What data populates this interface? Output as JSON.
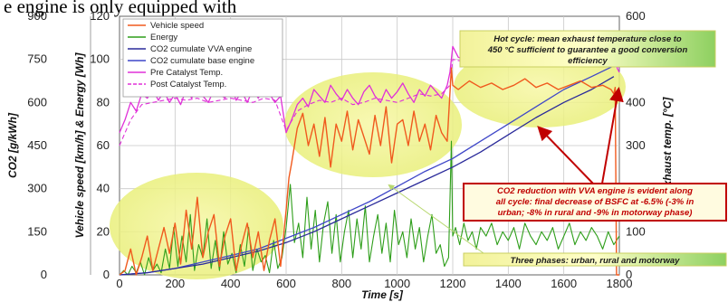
{
  "caption": "e engine is only equipped with",
  "chart_data": {
    "type": "line",
    "xlabel": "Time [s]",
    "xlim": [
      0,
      1800
    ],
    "x_ticks": [
      0,
      200,
      400,
      600,
      800,
      1000,
      1200,
      1400,
      1600,
      1800
    ],
    "y_axes": {
      "co2": {
        "label": "CO2 [g/kWh]",
        "lim": [
          0,
          900
        ],
        "ticks": [
          0,
          150,
          300,
          450,
          600,
          750,
          900
        ]
      },
      "speed_energy": {
        "label": "Vehicle speed [km/h] & Energy [Wh]",
        "lim": [
          0,
          120
        ],
        "ticks": [
          0,
          20,
          40,
          60,
          80,
          100,
          120
        ]
      },
      "temp": {
        "label": "Exhaust temp. [°C]",
        "lim": [
          0,
          600
        ],
        "ticks": [
          0,
          100,
          200,
          300,
          400,
          500,
          600
        ]
      }
    },
    "legend": {
      "placement": "top-left",
      "entries": [
        {
          "name": "Vehicle speed",
          "color": "#f05a1e"
        },
        {
          "name": "Energy",
          "color": "#2e9e1a"
        },
        {
          "name": "CO2 cumulate VVA engine",
          "color": "#2a2a9a"
        },
        {
          "name": "CO2 cumulate base engine",
          "color": "#3f47c8"
        },
        {
          "name": "Pre Catalyst Temp.",
          "color": "#e030d8"
        },
        {
          "name": "Post Catalyst Temp.",
          "color": "#e030d8"
        }
      ]
    },
    "series": [
      {
        "name": "Vehicle speed",
        "axis": "speed_energy",
        "color": "#f05a1e",
        "width": 1.4,
        "x": [
          0,
          20,
          40,
          60,
          80,
          100,
          120,
          140,
          160,
          180,
          200,
          220,
          240,
          260,
          280,
          300,
          320,
          340,
          360,
          380,
          400,
          420,
          440,
          460,
          480,
          500,
          520,
          540,
          560,
          580,
          600,
          610,
          620,
          640,
          660,
          680,
          700,
          720,
          740,
          760,
          780,
          800,
          820,
          840,
          860,
          880,
          900,
          920,
          940,
          960,
          980,
          1000,
          1020,
          1040,
          1060,
          1080,
          1100,
          1120,
          1140,
          1160,
          1180,
          1195,
          1200,
          1220,
          1260,
          1300,
          1340,
          1380,
          1420,
          1460,
          1500,
          1540,
          1580,
          1620,
          1660,
          1700,
          1740,
          1770,
          1780,
          1785,
          1790,
          1800
        ],
        "y": [
          0,
          2,
          12,
          0,
          8,
          18,
          2,
          12,
          22,
          10,
          24,
          5,
          30,
          12,
          36,
          8,
          20,
          28,
          4,
          18,
          26,
          2,
          14,
          24,
          8,
          20,
          2,
          16,
          26,
          4,
          30,
          45,
          52,
          68,
          75,
          60,
          70,
          55,
          73,
          50,
          70,
          62,
          76,
          58,
          72,
          64,
          56,
          74,
          60,
          78,
          52,
          70,
          72,
          60,
          76,
          62,
          70,
          58,
          74,
          66,
          62,
          96,
          88,
          86,
          90,
          87,
          89,
          86,
          88,
          91,
          87,
          89,
          86,
          88,
          90,
          87,
          88,
          86,
          84,
          87,
          0,
          0
        ]
      },
      {
        "name": "Energy",
        "axis": "speed_energy",
        "color": "#2e9e1a",
        "width": 1.1,
        "x": [
          0,
          15,
          30,
          45,
          60,
          75,
          90,
          105,
          120,
          135,
          150,
          165,
          180,
          195,
          210,
          225,
          240,
          255,
          270,
          285,
          300,
          315,
          330,
          345,
          360,
          375,
          390,
          405,
          420,
          435,
          450,
          465,
          480,
          495,
          510,
          525,
          540,
          555,
          570,
          585,
          600,
          615,
          630,
          645,
          660,
          675,
          690,
          705,
          720,
          735,
          750,
          765,
          780,
          795,
          810,
          825,
          840,
          855,
          870,
          885,
          900,
          915,
          930,
          945,
          960,
          975,
          990,
          1005,
          1020,
          1035,
          1050,
          1065,
          1080,
          1095,
          1110,
          1125,
          1140,
          1155,
          1170,
          1185,
          1195,
          1200,
          1210,
          1225,
          1240,
          1255,
          1270,
          1285,
          1300,
          1320,
          1340,
          1360,
          1380,
          1400,
          1420,
          1440,
          1460,
          1480,
          1500,
          1520,
          1540,
          1560,
          1580,
          1600,
          1620,
          1640,
          1660,
          1680,
          1700,
          1720,
          1740,
          1760,
          1780,
          1800
        ],
        "y": [
          0,
          2,
          0,
          4,
          1,
          6,
          0,
          8,
          2,
          5,
          1,
          12,
          3,
          22,
          4,
          18,
          6,
          28,
          2,
          14,
          8,
          26,
          3,
          16,
          2,
          20,
          5,
          10,
          1,
          14,
          4,
          22,
          2,
          12,
          6,
          9,
          1,
          16,
          3,
          8,
          22,
          42,
          15,
          24,
          8,
          36,
          12,
          30,
          6,
          24,
          34,
          10,
          28,
          6,
          20,
          30,
          8,
          26,
          12,
          32,
          6,
          18,
          28,
          10,
          24,
          6,
          30,
          14,
          20,
          8,
          26,
          12,
          22,
          6,
          18,
          28,
          10,
          14,
          4,
          8,
          62,
          18,
          22,
          14,
          24,
          16,
          20,
          12,
          22,
          18,
          24,
          14,
          20,
          16,
          22,
          12,
          24,
          18,
          14,
          20,
          16,
          22,
          12,
          18,
          24,
          14,
          20,
          16,
          22,
          18,
          12,
          20,
          14,
          18
        ]
      },
      {
        "name": "CO2 cumulate VVA engine",
        "axis": "speed_energy",
        "color": "#2a2a9a",
        "width": 1.3,
        "x": [
          0,
          100,
          200,
          300,
          400,
          500,
          600,
          700,
          800,
          900,
          1000,
          1100,
          1200,
          1300,
          1400,
          1500,
          1600,
          1700,
          1780
        ],
        "y": [
          0,
          1,
          3,
          5,
          8,
          11,
          15,
          20,
          26,
          32,
          38,
          44,
          50,
          57,
          65,
          73,
          80,
          86,
          92
        ]
      },
      {
        "name": "CO2 cumulate base engine",
        "axis": "speed_energy",
        "color": "#3f47c8",
        "width": 1.3,
        "x": [
          0,
          100,
          200,
          300,
          400,
          500,
          600,
          700,
          800,
          900,
          1000,
          1100,
          1200,
          1300,
          1400,
          1500,
          1600,
          1700,
          1780
        ],
        "y": [
          0,
          1,
          3,
          6,
          9,
          12,
          17,
          22,
          28,
          34,
          41,
          48,
          54,
          62,
          70,
          78,
          86,
          92,
          97
        ]
      },
      {
        "name": "Pre Catalyst Temp.",
        "axis": "temp",
        "color": "#e030d8",
        "width": 1.3,
        "x": [
          0,
          20,
          40,
          60,
          80,
          100,
          120,
          140,
          160,
          180,
          200,
          220,
          240,
          260,
          280,
          300,
          320,
          340,
          360,
          380,
          400,
          420,
          440,
          460,
          480,
          500,
          520,
          540,
          560,
          580,
          600,
          620,
          640,
          660,
          680,
          700,
          720,
          740,
          760,
          780,
          800,
          820,
          840,
          860,
          880,
          900,
          920,
          940,
          960,
          980,
          1000,
          1020,
          1040,
          1060,
          1080,
          1100,
          1120,
          1140,
          1160,
          1180,
          1190,
          1200,
          1220,
          1240,
          1260,
          1280,
          1300,
          1340,
          1380,
          1420,
          1460,
          1500,
          1540,
          1580,
          1620,
          1660,
          1700,
          1740,
          1780,
          1800
        ],
        "y": [
          330,
          360,
          400,
          380,
          420,
          410,
          430,
          405,
          425,
          400,
          420,
          395,
          430,
          410,
          440,
          415,
          400,
          430,
          420,
          410,
          440,
          405,
          425,
          400,
          430,
          410,
          435,
          420,
          400,
          415,
          330,
          360,
          395,
          410,
          390,
          430,
          415,
          400,
          440,
          420,
          405,
          430,
          410,
          395,
          425,
          440,
          415,
          400,
          430,
          410,
          425,
          445,
          420,
          400,
          430,
          415,
          440,
          425,
          410,
          440,
          470,
          530,
          505,
          500,
          490,
          500,
          505,
          495,
          500,
          490,
          495,
          505,
          490,
          500,
          495,
          505,
          490,
          500,
          495,
          470
        ]
      },
      {
        "name": "Post Catalyst Temp.",
        "axis": "temp",
        "color": "#e030d8",
        "width": 1.1,
        "dash": "5,3",
        "x": [
          0,
          40,
          80,
          120,
          160,
          200,
          240,
          280,
          320,
          360,
          400,
          440,
          480,
          520,
          560,
          600,
          640,
          680,
          720,
          760,
          800,
          840,
          880,
          920,
          960,
          1000,
          1040,
          1080,
          1120,
          1160,
          1190,
          1200,
          1240,
          1280,
          1320,
          1360,
          1400,
          1440,
          1480,
          1520,
          1560,
          1600,
          1640,
          1680,
          1720,
          1760,
          1800
        ],
        "y": [
          300,
          360,
          395,
          400,
          405,
          410,
          405,
          410,
          400,
          405,
          410,
          405,
          400,
          410,
          405,
          335,
          380,
          395,
          405,
          400,
          410,
          395,
          400,
          410,
          405,
          400,
          410,
          420,
          415,
          420,
          440,
          500,
          495,
          490,
          500,
          495,
          505,
          500,
          495,
          500,
          505,
          495,
          500,
          505,
          495,
          500,
          480
        ]
      }
    ],
    "annotations": [
      {
        "text": [
          "Hot cycle: mean exhaust temperature close to",
          "450 °C sufficient to guarantee a good conversion",
          "efficiency"
        ],
        "color": "#1a1a1a"
      },
      {
        "text": [
          "CO2 reduction with VVA engine is evident along",
          "all cycle: final decrease of BSFC at -6.5% (-3% in",
          "urban; -8% in rural and -9% in motorway phase)"
        ],
        "color": "#c00000"
      },
      {
        "text": [
          "Three phases: urban, rural and motorway"
        ],
        "color": "#1a1a1a"
      }
    ]
  }
}
